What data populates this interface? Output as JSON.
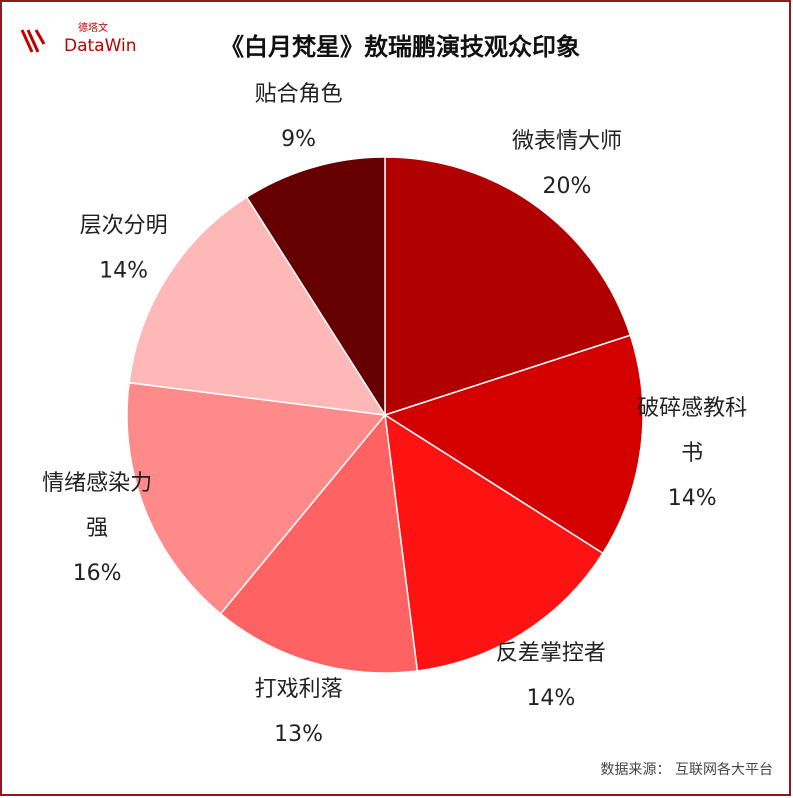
{
  "chart_data": {
    "type": "pie",
    "title": "《白月梵星》敖瑞鹏演技观众印象",
    "categories": [
      "微表情大师",
      "破碎感教科书",
      "反差掌控者",
      "打戏利落",
      "情绪感染力强",
      "层次分明",
      "贴合角色"
    ],
    "values": [
      20,
      14,
      14,
      13,
      16,
      14,
      9
    ],
    "value_labels": [
      "20%",
      "14%",
      "14%",
      "13%",
      "16%",
      "14%",
      "9%"
    ],
    "colors": [
      "#b00000",
      "#d40000",
      "#ff1212",
      "#ff6262",
      "#ff8a8a",
      "#ffb8b8",
      "#660000"
    ],
    "source": "数据来源：  互联网各大平台",
    "logo": {
      "brand": "DataWin",
      "brand_cn": "德塔文"
    }
  }
}
